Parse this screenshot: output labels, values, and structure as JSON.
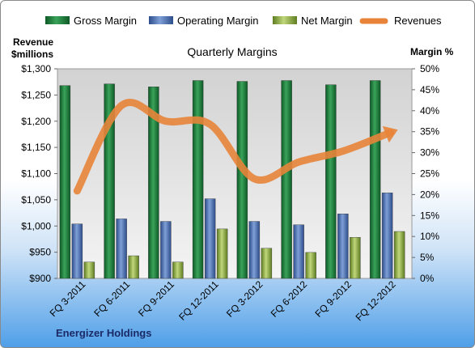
{
  "chart_data": {
    "type": "bar",
    "title": "Quarterly Margins",
    "categories": [
      "FQ 3-2011",
      "FQ 6-2011",
      "FQ 9-2011",
      "FQ 12-2011",
      "FQ 3-2012",
      "FQ 6-2012",
      "FQ 9-2012",
      "FQ 12-2012"
    ],
    "series": [
      {
        "name": "Gross Margin",
        "axis": "right",
        "values": [
          46.0,
          46.4,
          45.7,
          47.2,
          47.0,
          47.2,
          46.2,
          47.2
        ],
        "color": "#1f7a3c"
      },
      {
        "name": "Operating Margin",
        "axis": "right",
        "values": [
          13.0,
          14.2,
          13.6,
          19.0,
          13.6,
          12.8,
          15.4,
          20.4
        ],
        "color": "#4a6fb5"
      },
      {
        "name": "Net Margin",
        "axis": "right",
        "values": [
          3.9,
          5.4,
          3.9,
          11.8,
          7.2,
          6.2,
          9.8,
          11.2
        ],
        "color": "#8fae3e"
      },
      {
        "name": "Revenues",
        "axis": "left",
        "type": "line",
        "values": [
          1067,
          1230,
          1200,
          1194,
          1090,
          1122,
          1143,
          1176
        ],
        "color": "#e8843a"
      }
    ],
    "left_axis": {
      "label_line1": "Revenue",
      "label_line2": "$millions",
      "min": 900,
      "max": 1300,
      "step": 50,
      "ticks": [
        "$900",
        "$950",
        "$1,000",
        "$1,050",
        "$1,100",
        "$1,150",
        "$1,200",
        "$1,250",
        "$1,300"
      ]
    },
    "right_axis": {
      "label": "Margin %",
      "min": 0,
      "max": 50,
      "step": 5,
      "ticks": [
        "0%",
        "5%",
        "10%",
        "15%",
        "20%",
        "25%",
        "30%",
        "35%",
        "40%",
        "45%",
        "50%"
      ]
    },
    "legend_position": "top",
    "grid": false,
    "footer": "Energizer Holdings"
  }
}
